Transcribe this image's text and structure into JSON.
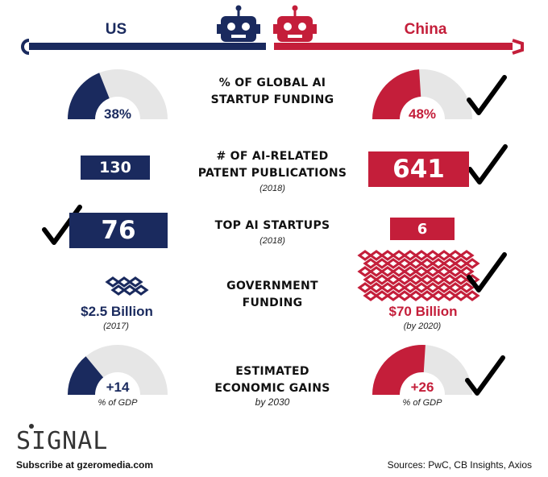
{
  "header": {
    "us_label": "US",
    "china_label": "China"
  },
  "colors": {
    "us": "#1a2a5e",
    "china": "#c41e3a",
    "gauge_track": "#e6e6e6",
    "check": "#000000"
  },
  "rows": {
    "startup_funding": {
      "title_line1": "% OF GLOBAL AI",
      "title_line2": "STARTUP FUNDING",
      "us_value": "38%",
      "china_value": "48%"
    },
    "patents": {
      "title_line1": "# OF AI-RELATED",
      "title_line2": "PATENT PUBLICATIONS",
      "year": "(2018)",
      "us_value": "130",
      "china_value": "641"
    },
    "startups": {
      "title": "TOP AI STARTUPS",
      "year": "(2018)",
      "us_value": "76",
      "china_value": "6"
    },
    "gov_funding": {
      "title_line1": "GOVERNMENT",
      "title_line2": "FUNDING",
      "us_value": "$2.5 Billion",
      "us_year": "(2017)",
      "china_value": "$70 Billion",
      "china_year": "(by 2020)"
    },
    "econ_gains": {
      "title_line1": "ESTIMATED",
      "title_line2": "ECONOMIC GAINS",
      "title_line3": "by 2030",
      "us_value": "+14",
      "us_unit": "% of GDP",
      "china_value": "+26",
      "china_unit": "% of GDP"
    }
  },
  "chart_data": {
    "type": "table",
    "columns": [
      "US",
      "China"
    ],
    "rows": [
      {
        "metric": "% OF GLOBAL AI STARTUP FUNDING",
        "us": 38,
        "china": 48,
        "winner": "China"
      },
      {
        "metric": "# OF AI-RELATED PATENT PUBLICATIONS (2018)",
        "us": 130,
        "china": 641,
        "winner": "China"
      },
      {
        "metric": "TOP AI STARTUPS (2018)",
        "us": 76,
        "china": 6,
        "winner": "US"
      },
      {
        "metric": "GOVERNMENT FUNDING",
        "us": "$2.5 Billion (2017)",
        "china": "$70 Billion (by 2020)",
        "us_num": 2.5,
        "china_num": 70,
        "winner": "China"
      },
      {
        "metric": "ESTIMATED ECONOMIC GAINS by 2030 (% of GDP)",
        "us": 14,
        "china": 26,
        "winner": "China"
      }
    ]
  },
  "footer": {
    "logo": "SIGNAL",
    "subscribe": "Subscribe at gzeromedia.com",
    "sources": "Sources: PwC, CB Insights, Axios"
  }
}
